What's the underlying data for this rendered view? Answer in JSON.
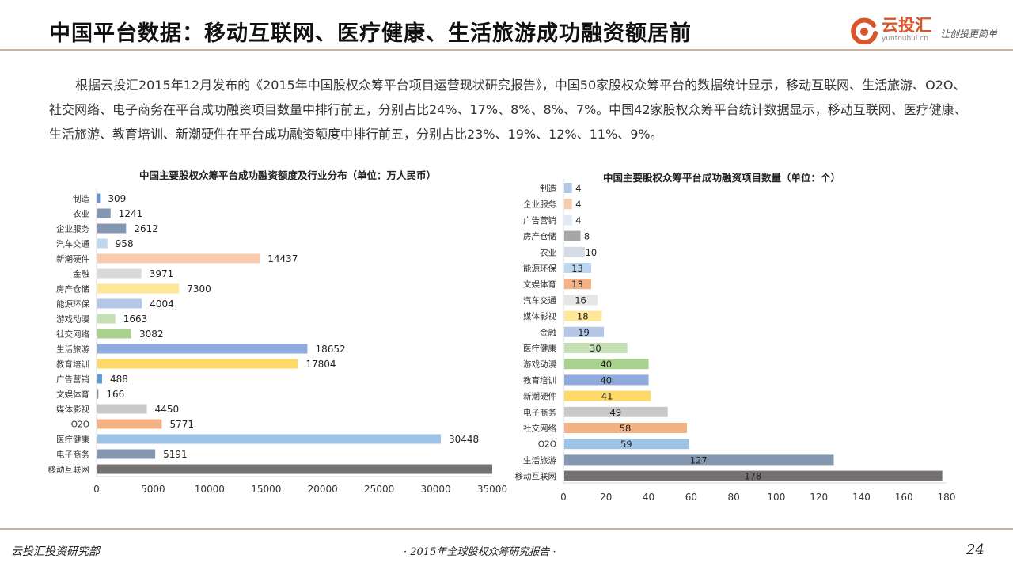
{
  "header": {
    "title": "中国平台数据：移动互联网、医疗健康、生活旅游成功融资额居前",
    "logo_name": "云投汇",
    "logo_url": "yuntouhui.cn",
    "logo_slogan": "让创投更简单"
  },
  "body": {
    "paragraph": "根据云投汇2015年12月发布的《2015年中国股权众筹平台项目运营现状研究报告》，中国50家股权众筹平台的数据统计显示，移动互联网、生活旅游、O2O、社交网络、电子商务在平台成功融资项目数量中排行前五，分别占比24%、17%、8%、8%、7%。中国42家股权众筹平台统计数据显示，移动互联网、医疗健康、生活旅游、教育培训、新潮硬件在平台成功融资额度中排行前五，分别占比23%、19%、12%、11%、9%。"
  },
  "chart_data": [
    {
      "type": "bar",
      "orientation": "horizontal",
      "title": "中国主要股权众筹平台成功融资额度及行业分布（单位：万人民币）",
      "categories": [
        "制造",
        "农业",
        "企业服务",
        "汽车交通",
        "新潮硬件",
        "金融",
        "房产仓储",
        "能源环保",
        "游戏动漫",
        "社交网络",
        "生活旅游",
        "教育培训",
        "广告营销",
        "文娱体育",
        "媒体影视",
        "O2O",
        "医疗健康",
        "电子商务",
        "移动互联网"
      ],
      "values": [
        309,
        1241,
        2612,
        958,
        14437,
        3971,
        7300,
        4004,
        1663,
        3082,
        18652,
        17804,
        488,
        166,
        4450,
        5771,
        30448,
        5191,
        35000
      ],
      "value_labels": [
        "309",
        "1241",
        "2612",
        "958",
        "14437",
        "3971",
        "7300",
        "4004",
        "1663",
        "3082",
        "18652",
        "17804",
        "488",
        "166",
        "4450",
        "5771",
        "30448",
        "5191",
        ""
      ],
      "colors": [
        "#5b9bd5",
        "#8497b0",
        "#8497b0",
        "#bdd7ee",
        "#f8cbad",
        "#d9d9d9",
        "#ffe699",
        "#b4c7e7",
        "#c5e0b4",
        "#a9d18e",
        "#8faadc",
        "#ffd966",
        "#5b9bd5",
        "#8497b0",
        "#c9c9c9",
        "#f4b183",
        "#9dc3e6",
        "#8497b0",
        "#767171"
      ],
      "xticks": [
        "0",
        "5000",
        "10000",
        "15000",
        "20000",
        "25000",
        "30000",
        "35000"
      ],
      "xlim": [
        0,
        35000
      ],
      "xlabel": "",
      "ylabel": ""
    },
    {
      "type": "bar",
      "orientation": "horizontal",
      "title": "中国主要股权众筹平台成功融资项目数量（单位：个）",
      "categories": [
        "制造",
        "企业服务",
        "广告营销",
        "房产仓储",
        "农业",
        "能源环保",
        "文娱体育",
        "汽车交通",
        "媒体影视",
        "金融",
        "医疗健康",
        "游戏动漫",
        "教育培训",
        "新潮硬件",
        "电子商务",
        "社交网络",
        "O2O",
        "生活旅游",
        "移动互联网"
      ],
      "values": [
        4,
        4,
        4,
        8,
        10,
        13,
        13,
        16,
        18,
        19,
        30,
        40,
        40,
        41,
        49,
        58,
        59,
        127,
        178
      ],
      "value_labels": [
        "4",
        "4",
        "4",
        "8",
        "10",
        "13",
        "13",
        "16",
        "18",
        "19",
        "30",
        "40",
        "40",
        "41",
        "49",
        "58",
        "59",
        "127",
        "178"
      ],
      "colors": [
        "#b4c7e7",
        "#f8cbad",
        "#deebf7",
        "#a6a6a6",
        "#d6dce5",
        "#bdd7ee",
        "#f4b183",
        "#e7e6e6",
        "#ffe699",
        "#b4c7e7",
        "#c5e0b4",
        "#a9d18e",
        "#8faadc",
        "#ffd966",
        "#c9c9c9",
        "#f4b183",
        "#9dc3e6",
        "#8497b0",
        "#767171"
      ],
      "xticks": [
        "0",
        "20",
        "40",
        "60",
        "80",
        "100",
        "120",
        "140",
        "160",
        "180"
      ],
      "xlim": [
        0,
        180
      ],
      "xlabel": "",
      "ylabel": ""
    }
  ],
  "footer": {
    "left": "云投汇投资研究部",
    "center": "· 2015年全球股权众筹研究报告 ·",
    "page": "24"
  }
}
